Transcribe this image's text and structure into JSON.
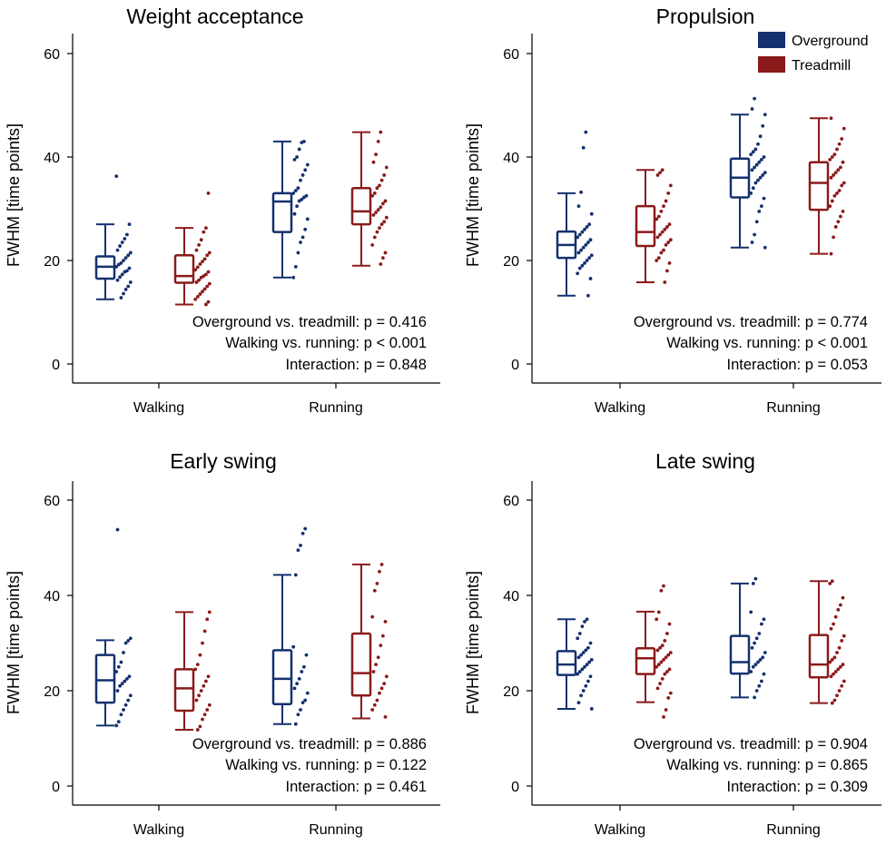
{
  "chart_data": {
    "type": "box",
    "colors": {
      "overground": "#14316e",
      "treadmill": "#8b1a1a"
    },
    "legend": {
      "placement": "top-right",
      "entries": [
        "Overground",
        "Treadmill"
      ]
    },
    "ylabel": "FWHM [time points]",
    "ylim": [
      0,
      60
    ],
    "yticks": [
      "0",
      "20",
      "40",
      "60"
    ],
    "categories": [
      "Walking",
      "Running"
    ],
    "panels": [
      {
        "title": "Weight acceptance",
        "stats": [
          "Overground vs. treadmill: p = 0.416",
          "Walking vs. running: p < 0.001",
          "Interaction: p = 0.848"
        ],
        "boxes": [
          {
            "category": "Walking",
            "series": "Overground",
            "min": 12.5,
            "q1": 16.5,
            "median": 18.8,
            "q3": 20.8,
            "max": 27,
            "points": [
              36.3,
              27.0,
              25.0,
              24.2,
              23.5,
              22.8,
              22.0,
              21.5,
              21.0,
              20.5,
              20.0,
              19.5,
              19.2,
              18.8,
              18.5,
              18.0,
              17.8,
              17.3,
              16.8,
              16.2,
              15.8,
              15.0,
              14.4,
              13.6,
              12.8
            ]
          },
          {
            "category": "Walking",
            "series": "Treadmill",
            "min": 11.5,
            "q1": 15.7,
            "median": 17.0,
            "q3": 21.0,
            "max": 26.3,
            "points": [
              33.0,
              26.3,
              25.5,
              24.0,
              23.0,
              22.0,
              21.5,
              21.0,
              20.3,
              19.8,
              19.3,
              18.7,
              18.2,
              17.8,
              17.3,
              17.0,
              16.7,
              16.2,
              15.8,
              15.5,
              15.0,
              14.5,
              14.0,
              13.5,
              13.0,
              12.5,
              12.0,
              11.5
            ]
          },
          {
            "category": "Running",
            "series": "Overground",
            "min": 16.7,
            "q1": 25.5,
            "median": 31.4,
            "q3": 33.0,
            "max": 43,
            "points": [
              43.0,
              42.8,
              41.5,
              40.0,
              39.5,
              38.5,
              37.5,
              36.5,
              35.5,
              34.0,
              33.5,
              33.0,
              32.5,
              32.2,
              31.8,
              31.5,
              30.5,
              29.0,
              28.0,
              26.0,
              24.5,
              23.5,
              21.5,
              18.8,
              16.7
            ]
          },
          {
            "category": "Running",
            "series": "Treadmill",
            "min": 19,
            "q1": 27,
            "median": 29.5,
            "q3": 34,
            "max": 44.8,
            "points": [
              44.8,
              43.0,
              40.5,
              39.0,
              38.0,
              36.5,
              35.5,
              34.5,
              34.0,
              33.0,
              32.5,
              31.5,
              31.0,
              30.3,
              29.8,
              29.3,
              28.8,
              28.3,
              27.5,
              27.0,
              26.3,
              25.5,
              24.5,
              23.0,
              21.5,
              20.5,
              19.3
            ]
          }
        ]
      },
      {
        "title": "Propulsion",
        "stats": [
          "Overground vs. treadmill: p = 0.774",
          "Walking vs. running: p < 0.001",
          "Interaction: p = 0.053"
        ],
        "boxes": [
          {
            "category": "Walking",
            "series": "Overground",
            "min": 13.2,
            "q1": 20.5,
            "median": 23.0,
            "q3": 25.6,
            "max": 33.0,
            "points": [
              44.8,
              41.8,
              33.2,
              30.5,
              29.0,
              27.0,
              26.5,
              26.0,
              25.5,
              25.0,
              24.5,
              24.0,
              23.5,
              23.0,
              22.5,
              22.0,
              21.5,
              21.0,
              20.5,
              20.0,
              19.5,
              19.0,
              18.5,
              17.5,
              16.5,
              13.2
            ]
          },
          {
            "category": "Walking",
            "series": "Treadmill",
            "min": 15.8,
            "q1": 22.8,
            "median": 25.5,
            "q3": 30.5,
            "max": 37.5,
            "points": [
              37.5,
              37.0,
              36.5,
              34.5,
              33.0,
              31.5,
              30.5,
              29.5,
              28.5,
              28.0,
              27.0,
              26.5,
              26.0,
              25.5,
              25.0,
              24.5,
              24.0,
              23.5,
              23.0,
              22.0,
              21.5,
              20.5,
              20.0,
              19.5,
              18.0,
              15.8
            ]
          },
          {
            "category": "Running",
            "series": "Overground",
            "min": 22.5,
            "q1": 32.2,
            "median": 36.0,
            "q3": 39.7,
            "max": 48.2,
            "points": [
              51.3,
              49.3,
              48.2,
              46.0,
              44.0,
              42.5,
              41.5,
              41.0,
              40.5,
              40.0,
              39.5,
              39.0,
              38.5,
              38.0,
              37.5,
              37.0,
              36.5,
              36.0,
              35.5,
              35.0,
              34.0,
              33.0,
              32.0,
              30.5,
              29.5,
              27.5,
              25.0,
              23.5,
              22.5
            ]
          },
          {
            "category": "Running",
            "series": "Treadmill",
            "min": 21.3,
            "q1": 29.8,
            "median": 35.0,
            "q3": 39.0,
            "max": 47.5,
            "points": [
              47.5,
              45.5,
              43.5,
              42.5,
              41.5,
              40.5,
              40.0,
              39.5,
              39.0,
              38.0,
              37.5,
              37.0,
              36.5,
              36.0,
              35.0,
              34.5,
              33.5,
              33.0,
              32.5,
              31.5,
              30.5,
              29.5,
              28.5,
              27.5,
              26.5,
              24.5,
              21.3
            ]
          }
        ]
      },
      {
        "title": "Early swing",
        "stats": [
          "Overground vs. treadmill: p = 0.886",
          "Walking vs. running: p = 0.122",
          "Interaction: p = 0.461"
        ],
        "boxes": [
          {
            "category": "Walking",
            "series": "Overground",
            "min": 12.7,
            "q1": 17.5,
            "median": 22.2,
            "q3": 27.5,
            "max": 30.6,
            "points": [
              53.8,
              31.0,
              30.5,
              30.0,
              28.0,
              26.0,
              25.0,
              24.0,
              23.0,
              22.5,
              22.0,
              21.5,
              21.0,
              20.0,
              19.0,
              18.0,
              17.0,
              16.0,
              15.0,
              13.5,
              12.7
            ]
          },
          {
            "category": "Walking",
            "series": "Treadmill",
            "min": 11.8,
            "q1": 15.8,
            "median": 20.5,
            "q3": 24.5,
            "max": 36.5,
            "points": [
              36.5,
              35.0,
              32.5,
              30.0,
              27.5,
              25.5,
              24.5,
              23.0,
              22.0,
              21.0,
              20.0,
              19.0,
              18.0,
              17.0,
              16.0,
              15.0,
              14.0,
              12.5,
              11.8
            ]
          },
          {
            "category": "Running",
            "series": "Overground",
            "min": 13.0,
            "q1": 17.2,
            "median": 22.5,
            "q3": 28.5,
            "max": 44.3,
            "points": [
              54.0,
              53.0,
              50.5,
              49.5,
              44.3,
              29.2,
              27.5,
              25.0,
              24.0,
              22.5,
              21.5,
              20.5,
              19.5,
              18.0,
              17.5,
              16.0,
              15.0,
              13.0
            ]
          },
          {
            "category": "Running",
            "series": "Treadmill",
            "min": 14.2,
            "q1": 19.0,
            "median": 23.7,
            "q3": 32.0,
            "max": 46.5,
            "points": [
              46.5,
              45.0,
              42.5,
              41.0,
              35.5,
              34.5,
              31.5,
              29.5,
              27.0,
              25.5,
              24.0,
              23.0,
              21.5,
              20.5,
              19.5,
              18.0,
              17.0,
              16.0,
              14.5
            ]
          }
        ]
      },
      {
        "title": "Late swing",
        "stats": [
          "Overground vs. treadmill: p = 0.904",
          "Walking vs. running: p = 0.865",
          "Interaction: p = 0.309"
        ],
        "boxes": [
          {
            "category": "Walking",
            "series": "Overground",
            "min": 16.2,
            "q1": 23.3,
            "median": 25.5,
            "q3": 28.3,
            "max": 35.0,
            "points": [
              35.0,
              34.5,
              33.5,
              32.0,
              31.0,
              30.0,
              29.0,
              28.5,
              28.0,
              27.5,
              27.0,
              26.5,
              26.0,
              25.5,
              25.0,
              24.5,
              24.0,
              23.5,
              23.0,
              22.0,
              21.0,
              20.0,
              19.0,
              17.5,
              16.2
            ]
          },
          {
            "category": "Walking",
            "series": "Treadmill",
            "min": 17.6,
            "q1": 23.5,
            "median": 26.8,
            "q3": 28.9,
            "max": 36.6,
            "points": [
              42.0,
              41.0,
              36.5,
              35.0,
              34.0,
              32.0,
              30.5,
              29.5,
              29.0,
              28.5,
              28.0,
              27.5,
              27.0,
              26.5,
              26.0,
              25.5,
              25.0,
              24.5,
              24.0,
              23.5,
              22.5,
              21.5,
              20.5,
              19.5,
              18.5,
              16.0,
              14.5
            ]
          },
          {
            "category": "Running",
            "series": "Overground",
            "min": 18.6,
            "q1": 23.6,
            "median": 26.0,
            "q3": 31.5,
            "max": 42.5,
            "points": [
              43.5,
              42.5,
              36.5,
              35.0,
              34.0,
              32.0,
              31.0,
              30.0,
              29.0,
              28.0,
              27.0,
              26.5,
              26.0,
              25.5,
              25.0,
              24.0,
              23.5,
              22.0,
              21.0,
              20.0,
              18.6
            ]
          },
          {
            "category": "Running",
            "series": "Treadmill",
            "min": 17.4,
            "q1": 22.8,
            "median": 25.5,
            "q3": 31.7,
            "max": 43.0,
            "points": [
              43.0,
              42.5,
              39.5,
              38.0,
              37.0,
              35.5,
              34.0,
              33.0,
              31.5,
              30.5,
              29.0,
              28.0,
              27.0,
              26.5,
              26.0,
              25.5,
              25.0,
              24.5,
              24.0,
              23.5,
              23.0,
              22.0,
              21.0,
              20.0,
              19.0,
              18.0,
              17.4
            ]
          }
        ]
      }
    ]
  }
}
